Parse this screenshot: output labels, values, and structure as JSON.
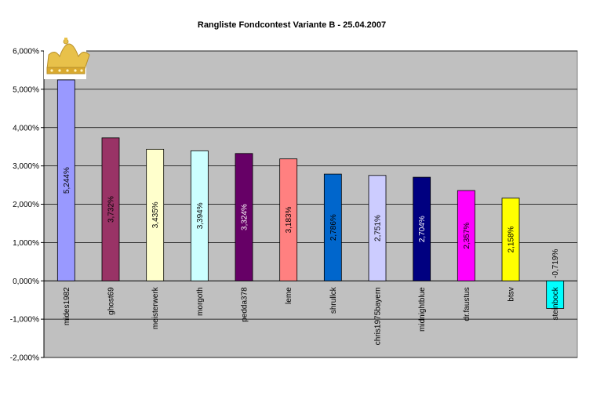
{
  "chart_data": {
    "type": "bar",
    "title": "Rangliste Fondcontest Variante B - 25.04.2007",
    "xlabel": "",
    "ylabel": "",
    "ylim": [
      -2,
      6
    ],
    "yticks": [
      6,
      5,
      4,
      3,
      2,
      1,
      0,
      -1,
      -2
    ],
    "ytick_labels": [
      "6,000%",
      "5,000%",
      "4,000%",
      "3,000%",
      "2,000%",
      "1,000%",
      "0,000%",
      "-1,000%",
      "-2,000%"
    ],
    "grid": true,
    "legend": "none",
    "categories": [
      "mides1982",
      "ghost69",
      "meisterwerk",
      "morgoth",
      "pedda378",
      "leme",
      "shrullck",
      "chris1975bayern",
      "midnightblue",
      "dr.faustus",
      "btsv",
      "steinbock"
    ],
    "values": [
      5.244,
      3.732,
      3.435,
      3.394,
      3.324,
      3.183,
      2.786,
      2.751,
      2.704,
      2.357,
      2.158,
      -0.719
    ],
    "data_labels": [
      "5,244%",
      "3,732%",
      "3,435%",
      "3,394%",
      "3,324%",
      "3,183%",
      "2,786%",
      "2,751%",
      "2,704%",
      "2,357%",
      "2,158%",
      "-0,719%"
    ],
    "colors": [
      "#9999ff",
      "#993366",
      "#ffffcc",
      "#ccffff",
      "#660066",
      "#ff8080",
      "#0066cc",
      "#ccccff",
      "#000080",
      "#ff00ff",
      "#ffff00",
      "#00ffff"
    ],
    "label_colors": [
      "#000000",
      "#000000",
      "#000000",
      "#000000",
      "#ffffff",
      "#000000",
      "#000000",
      "#000000",
      "#ffffff",
      "#000000",
      "#000000",
      "#000000"
    ],
    "plot_background": "#c0c0c0",
    "crown_icon": "crown-icon"
  }
}
